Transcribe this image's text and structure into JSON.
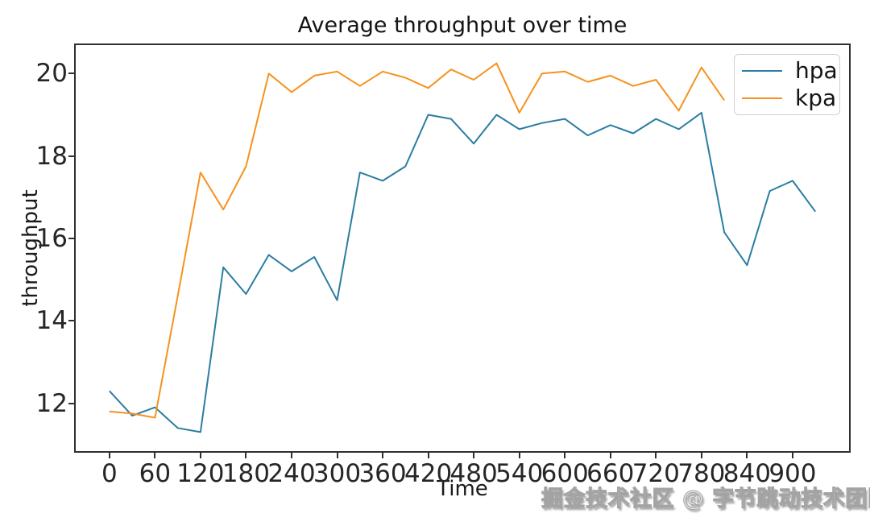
{
  "figure": {
    "watermark_text": "掘金技术社区 @ 字节跳动技术团队"
  },
  "colors": {
    "hpa": "#2b7da2",
    "kpa": "#f6921e",
    "axis": "#2f2f2f",
    "tick_label": "#262626",
    "legend_border": "#d0d0d0",
    "watermark": "#a3a3a3"
  },
  "chart_data": {
    "type": "line",
    "title": "Average throughput over time",
    "xlabel": "Time",
    "ylabel": "throughput",
    "xlim": [
      -46.5,
      976.5
    ],
    "ylim": [
      10.8,
      20.73
    ],
    "xticks": [
      0,
      60,
      120,
      180,
      240,
      300,
      360,
      420,
      480,
      540,
      600,
      660,
      720,
      780,
      840,
      900
    ],
    "yticks": [
      12,
      14,
      16,
      18,
      20
    ],
    "grid": false,
    "legend_position": "upper-right",
    "series": [
      {
        "name": "hpa",
        "color": "#2b7da2",
        "x": [
          0,
          30,
          60,
          90,
          120,
          150,
          180,
          210,
          240,
          270,
          300,
          330,
          360,
          390,
          420,
          450,
          480,
          510,
          540,
          570,
          600,
          630,
          660,
          690,
          720,
          750,
          780,
          810,
          840,
          870,
          900,
          930
        ],
        "y": [
          12.3,
          11.7,
          11.9,
          11.4,
          11.3,
          15.3,
          14.65,
          15.6,
          15.2,
          15.55,
          14.5,
          17.6,
          17.4,
          17.75,
          19.0,
          18.9,
          18.3,
          19.0,
          18.65,
          18.8,
          18.9,
          18.5,
          18.75,
          18.55,
          18.9,
          18.65,
          19.05,
          16.15,
          15.35,
          17.15,
          17.4,
          16.65
        ]
      },
      {
        "name": "kpa",
        "color": "#f6921e",
        "x": [
          0,
          30,
          60,
          90,
          120,
          150,
          180,
          210,
          240,
          270,
          300,
          330,
          360,
          390,
          420,
          450,
          480,
          510,
          540,
          570,
          600,
          630,
          660,
          690,
          720,
          750,
          780,
          810
        ],
        "y": [
          11.8,
          11.75,
          11.65,
          14.6,
          17.6,
          16.7,
          17.75,
          20.0,
          19.55,
          19.95,
          20.05,
          19.7,
          20.05,
          19.9,
          19.65,
          20.1,
          19.85,
          20.25,
          19.05,
          20.0,
          20.05,
          19.8,
          19.95,
          19.7,
          19.85,
          19.1,
          20.15,
          19.35
        ]
      }
    ]
  }
}
